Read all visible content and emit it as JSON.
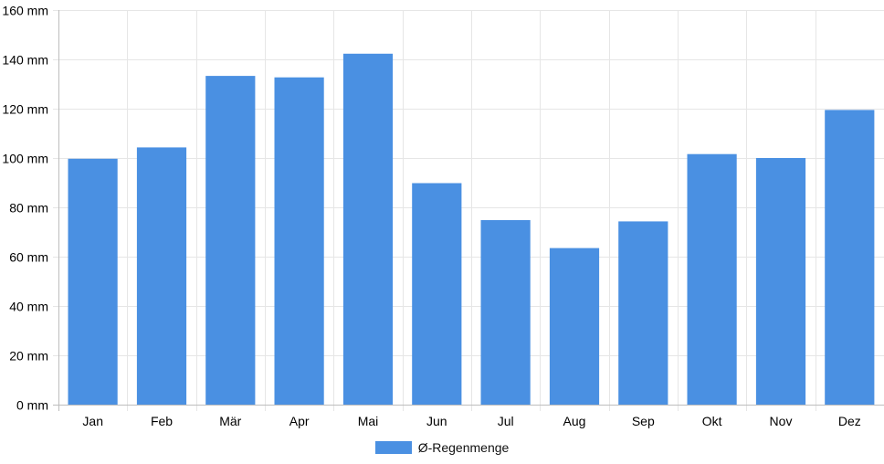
{
  "colors": {
    "bar": "#4a90e2",
    "grid": "#e6e6e6",
    "axis": "#bdbdbd"
  },
  "chart_data": {
    "type": "bar",
    "title": "",
    "xlabel": "",
    "ylabel": "",
    "categories": [
      "Jan",
      "Feb",
      "Mär",
      "Apr",
      "Mai",
      "Jun",
      "Jul",
      "Aug",
      "Sep",
      "Okt",
      "Nov",
      "Dez"
    ],
    "series": [
      {
        "name": "Ø-Regenmenge",
        "values": [
          99.7,
          104.3,
          133.3,
          132.7,
          142.3,
          89.8,
          74.8,
          63.5,
          74.3,
          101.6,
          100,
          119.5
        ]
      }
    ],
    "ylim": [
      0,
      160
    ],
    "yticks": [
      0,
      20,
      40,
      60,
      80,
      100,
      120,
      140,
      160
    ],
    "ytick_labels": [
      "0 mm",
      "20 mm",
      "40 mm",
      "60 mm",
      "80 mm",
      "100 mm",
      "120 mm",
      "140 mm",
      "160 mm"
    ],
    "grid": true,
    "legend_position": "bottom-center"
  },
  "legend": {
    "label": "Ø-Regenmenge"
  }
}
